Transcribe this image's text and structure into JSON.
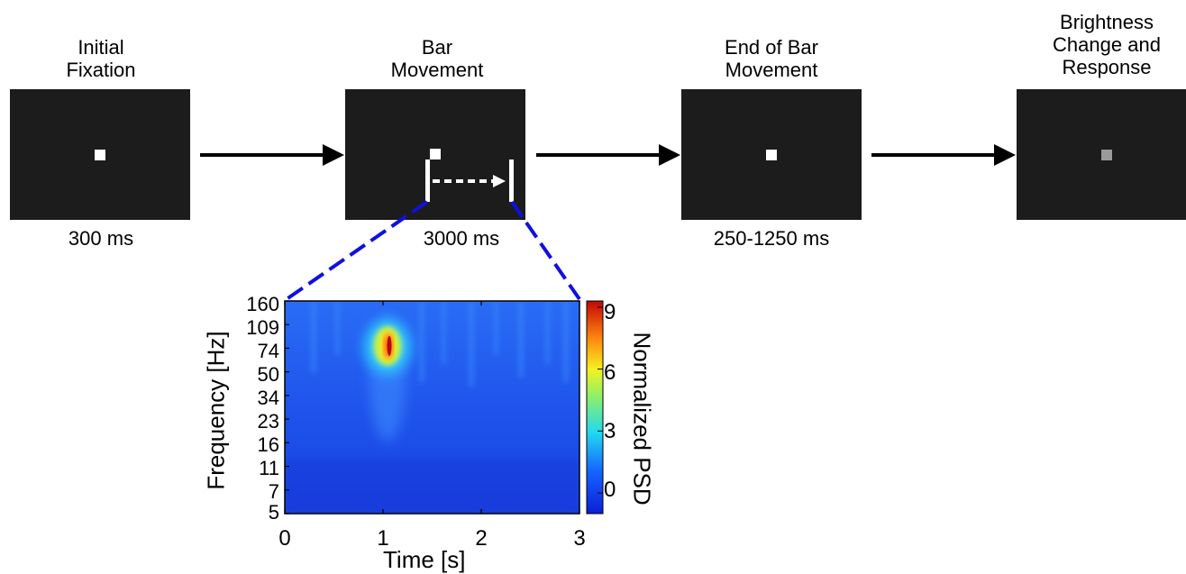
{
  "stages": [
    {
      "label_lines": [
        "Initial",
        "Fixation"
      ],
      "duration": "300 ms",
      "fixation": "white"
    },
    {
      "label_lines": [
        "Bar",
        "Movement"
      ],
      "duration": "3000 ms",
      "fixation": "white"
    },
    {
      "label_lines": [
        "End of Bar",
        "Movement"
      ],
      "duration": "250-1250 ms",
      "fixation": "white"
    },
    {
      "label_lines": [
        "Brightness",
        "Change and",
        "Response"
      ],
      "duration": "",
      "fixation": "gray"
    }
  ],
  "colors": {
    "screen": "#1c1c1c",
    "fixation_white": "#ffffff",
    "fixation_gray": "#9a9a9a",
    "zoom_lines": "#1010e0",
    "arrow": "#000000"
  },
  "spectrogram": {
    "y_ticks": [
      "160",
      "109",
      "74",
      "50",
      "34",
      "23",
      "16",
      "11",
      "7",
      "5"
    ],
    "x_ticks": [
      "0",
      "1",
      "2",
      "3"
    ],
    "ylabel": "Frequency [Hz]",
    "xlabel": "Time [s]",
    "colorbar_label": "Normalized PSD",
    "colorbar_ticks": [
      "0",
      "3",
      "6",
      "9"
    ],
    "peak": {
      "time_s": 1.05,
      "frequency_hz": 80,
      "psd": 9
    }
  }
}
